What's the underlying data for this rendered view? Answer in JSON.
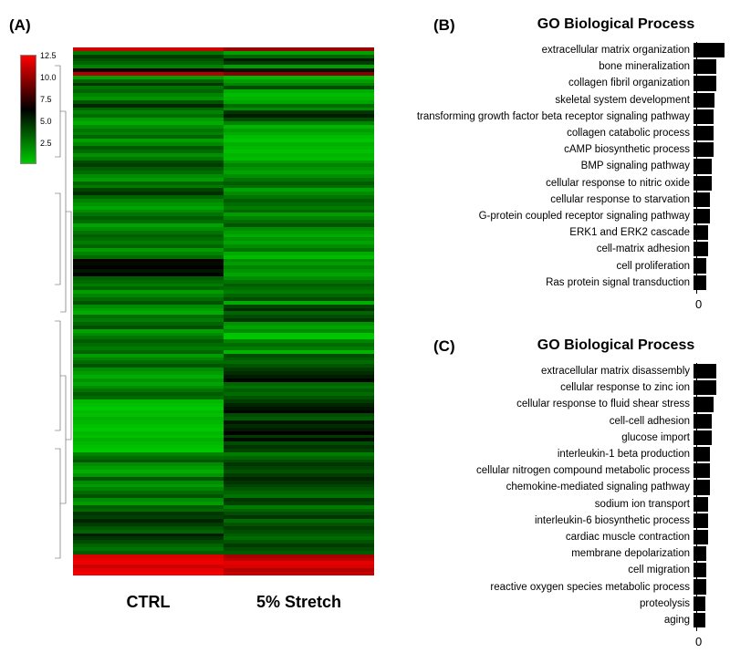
{
  "panels": {
    "A": "(A)",
    "B": "(B)",
    "C": "(C)"
  },
  "conditions": [
    "CTRL",
    "5% Stretch"
  ],
  "colorScale": {
    "min": 2.5,
    "max": 12.5,
    "ticks": [
      12.5,
      10.0,
      7.5,
      5.0,
      2.5
    ],
    "low": "#00c800",
    "mid": "#000000",
    "high": "#ff0000"
  },
  "heatmap": {
    "nrows": 150,
    "ctrl": [
      11.5,
      4.5,
      6.0,
      5.5,
      5.0,
      4.2,
      7.8,
      11.0,
      3.5,
      5.0,
      6.2,
      4.6,
      5.0,
      4.2,
      3.8,
      5.4,
      6.5,
      5.0,
      4.2,
      4.8,
      3.6,
      3.2,
      4.0,
      4.6,
      4.2,
      5.0,
      3.5,
      4.1,
      5.3,
      4.8,
      3.9,
      4.5,
      5.6,
      6.0,
      5.2,
      4.8,
      4.0,
      3.6,
      5.0,
      4.4,
      5.8,
      6.3,
      5.0,
      4.2,
      3.8,
      3.4,
      4.0,
      4.6,
      5.2,
      4.8,
      3.4,
      4.0,
      4.6,
      5.2,
      4.8,
      4.4,
      5.0,
      3.6,
      4.2,
      4.8,
      7.8,
      7.2,
      7.6,
      6.9,
      7.4,
      5.2,
      4.8,
      4.4,
      5.0,
      3.6,
      4.2,
      4.8,
      5.4,
      4.0,
      3.6,
      3.2,
      4.8,
      4.4,
      5.0,
      5.6,
      3.4,
      4.0,
      4.6,
      5.2,
      4.8,
      4.4,
      5.0,
      3.6,
      4.2,
      4.8,
      5.4,
      4.0,
      3.6,
      3.2,
      3.8,
      3.4,
      4.0,
      4.6,
      5.2,
      4.8,
      2.9,
      2.7,
      2.5,
      2.9,
      2.7,
      3.1,
      2.9,
      2.7,
      2.5,
      2.9,
      2.7,
      3.1,
      2.9,
      2.7,
      2.5,
      4.2,
      4.8,
      5.4,
      4.0,
      3.6,
      3.2,
      3.8,
      5.4,
      4.0,
      3.6,
      4.2,
      4.8,
      5.4,
      4.0,
      3.6,
      5.2,
      4.8,
      6.2,
      5.9,
      6.6,
      6.0,
      5.4,
      5.0,
      6.8,
      6.2,
      5.6,
      5.0,
      4.6,
      5.2,
      11.8,
      12.0,
      12.2,
      11.5,
      12.0,
      12.3
    ],
    "stretch": [
      10.5,
      3.5,
      5.0,
      6.8,
      6.0,
      3.5,
      7.0,
      10.2,
      2.9,
      3.6,
      4.2,
      5.6,
      3.2,
      2.8,
      3.0,
      3.4,
      4.8,
      4.0,
      6.2,
      6.8,
      5.6,
      4.2,
      3.0,
      3.6,
      3.2,
      2.8,
      2.6,
      3.1,
      2.9,
      2.7,
      3.0,
      2.8,
      3.6,
      4.2,
      3.8,
      3.4,
      4.0,
      4.6,
      5.2,
      4.8,
      3.4,
      4.0,
      4.6,
      5.2,
      4.8,
      4.4,
      5.0,
      3.6,
      4.2,
      4.8,
      5.4,
      4.0,
      3.6,
      3.2,
      3.8,
      3.4,
      4.0,
      4.6,
      3.2,
      2.8,
      4.0,
      3.6,
      4.2,
      3.8,
      3.4,
      4.0,
      4.6,
      5.2,
      4.8,
      4.4,
      5.0,
      5.6,
      3.2,
      5.8,
      6.4,
      5.0,
      5.6,
      6.2,
      3.8,
      3.4,
      4.0,
      2.6,
      2.5,
      4.2,
      4.8,
      4.4,
      3.0,
      5.6,
      5.2,
      4.8,
      5.4,
      6.0,
      6.4,
      6.8,
      7.4,
      5.0,
      4.6,
      5.2,
      4.8,
      5.4,
      6.0,
      6.6,
      7.0,
      7.4,
      5.6,
      5.2,
      7.0,
      6.4,
      6.8,
      7.6,
      6.0,
      7.2,
      5.6,
      6.2,
      5.8,
      4.4,
      5.0,
      5.6,
      6.2,
      5.8,
      5.4,
      6.0,
      6.6,
      6.2,
      5.8,
      5.4,
      5.0,
      4.6,
      6.2,
      5.8,
      4.4,
      5.0,
      5.6,
      6.2,
      4.8,
      5.4,
      6.0,
      5.6,
      5.2,
      4.8,
      5.4,
      6.0,
      5.6,
      5.2,
      10.8,
      11.2,
      12.0,
      11.8,
      11.0,
      11.4
    ]
  },
  "panelB": {
    "title": "GO Biological Process",
    "bar_color": "#000000",
    "axis_zero": "0",
    "max": 10,
    "items": [
      {
        "label": "extracellular matrix organization",
        "value": 9.5
      },
      {
        "label": "bone mineralization",
        "value": 7.0
      },
      {
        "label": "collagen fibril organization",
        "value": 7.0
      },
      {
        "label": "skeletal system development",
        "value": 6.5
      },
      {
        "label": "transforming growth factor beta receptor signaling pathway",
        "value": 6.0
      },
      {
        "label": "collagen catabolic process",
        "value": 6.0
      },
      {
        "label": "cAMP biosynthetic process",
        "value": 6.0
      },
      {
        "label": "BMP signaling pathway",
        "value": 5.5
      },
      {
        "label": "cellular response to nitric oxide",
        "value": 5.5
      },
      {
        "label": "cellular response to starvation",
        "value": 5.0
      },
      {
        "label": "G-protein coupled receptor signaling pathway",
        "value": 5.0
      },
      {
        "label": "ERK1 and ERK2 cascade",
        "value": 4.5
      },
      {
        "label": "cell-matrix adhesion",
        "value": 4.5
      },
      {
        "label": "cell proliferation",
        "value": 4.0
      },
      {
        "label": "Ras protein signal transduction",
        "value": 4.0
      }
    ]
  },
  "panelC": {
    "title": "GO Biological Process",
    "bar_color": "#000000",
    "axis_zero": "0",
    "max": 10,
    "items": [
      {
        "label": "extracellular matrix disassembly",
        "value": 7.0
      },
      {
        "label": "cellular response to zinc ion",
        "value": 7.0
      },
      {
        "label": "cellular response to fluid shear stress",
        "value": 6.0
      },
      {
        "label": "cell-cell adhesion",
        "value": 5.5
      },
      {
        "label": "glucose import",
        "value": 5.5
      },
      {
        "label": "interleukin-1 beta production",
        "value": 5.0
      },
      {
        "label": "cellular nitrogen compound metabolic process",
        "value": 5.0
      },
      {
        "label": "chemokine-mediated signaling pathway",
        "value": 5.0
      },
      {
        "label": "sodium ion transport",
        "value": 4.5
      },
      {
        "label": "interleukin-6 biosynthetic process",
        "value": 4.5
      },
      {
        "label": "cardiac muscle contraction",
        "value": 4.5
      },
      {
        "label": "membrane depolarization",
        "value": 4.0
      },
      {
        "label": "cell migration",
        "value": 4.0
      },
      {
        "label": "reactive oxygen species metabolic process",
        "value": 4.0
      },
      {
        "label": "proteolysis",
        "value": 3.5
      },
      {
        "label": "aging",
        "value": 3.5
      }
    ]
  }
}
